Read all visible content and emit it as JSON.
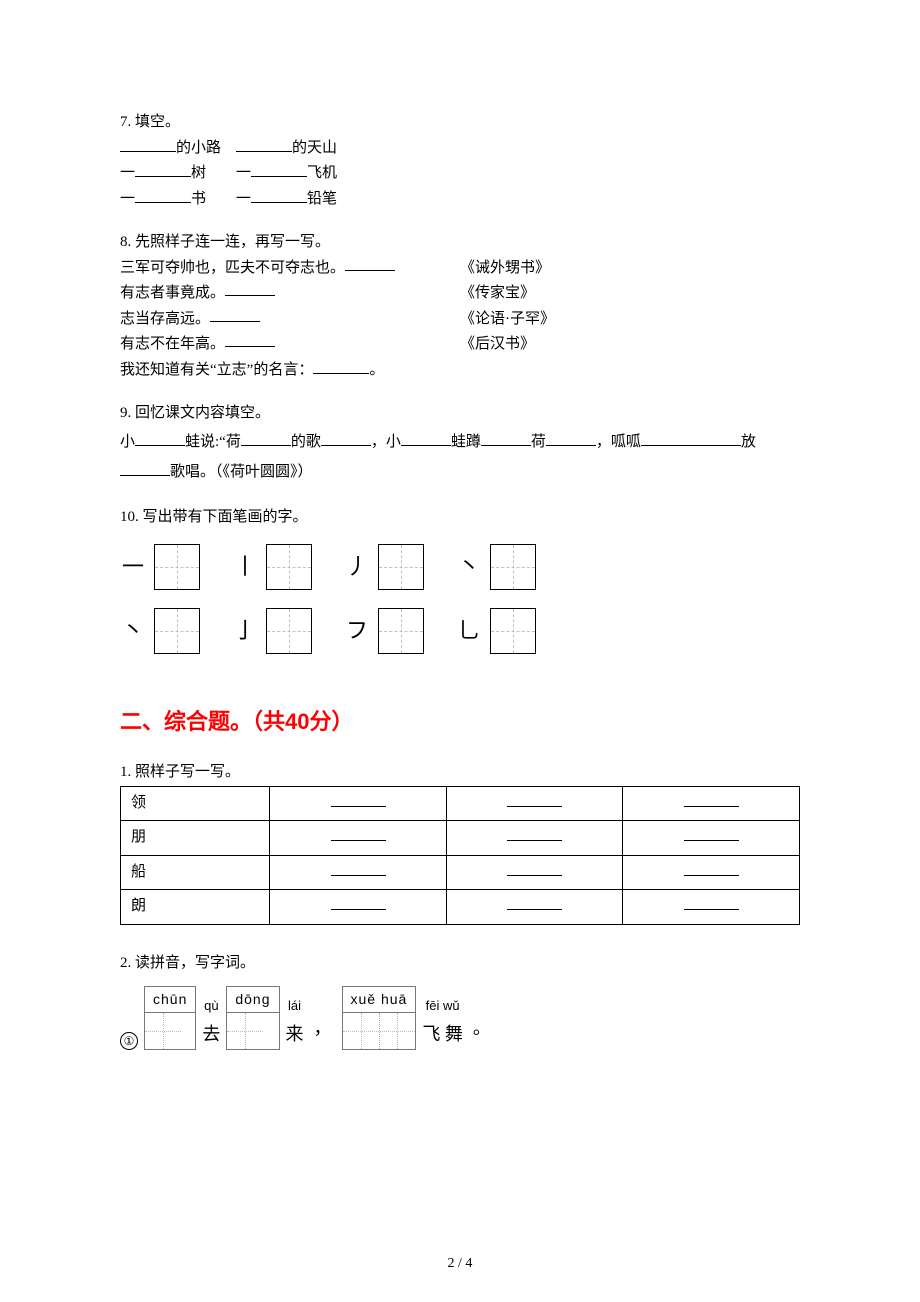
{
  "q7": {
    "title": "7. 填空。",
    "lines": [
      [
        {
          "t": "blank",
          "w": "lg"
        },
        {
          "t": "text",
          "v": "的小路　"
        },
        {
          "t": "blank",
          "w": "lg"
        },
        {
          "t": "text",
          "v": "的天山"
        }
      ],
      [
        {
          "t": "text",
          "v": "一"
        },
        {
          "t": "blank",
          "w": "lg"
        },
        {
          "t": "text",
          "v": "树　　一"
        },
        {
          "t": "blank",
          "w": "lg"
        },
        {
          "t": "text",
          "v": "飞机"
        }
      ],
      [
        {
          "t": "text",
          "v": "一"
        },
        {
          "t": "blank",
          "w": "lg"
        },
        {
          "t": "text",
          "v": "书　　一"
        },
        {
          "t": "blank",
          "w": "lg"
        },
        {
          "t": "text",
          "v": "铅笔"
        }
      ]
    ]
  },
  "q8": {
    "title": "8. 先照样子连一连，再写一写。",
    "rows": [
      {
        "left": "三军可夺帅也，匹夫不可夺志也。",
        "right": "《诫外甥书》"
      },
      {
        "left": "有志者事竟成。",
        "right": "《传家宝》"
      },
      {
        "left": "志当存高远。",
        "right": "《论语·子罕》"
      },
      {
        "left": "有志不在年高。",
        "right": "《后汉书》"
      }
    ],
    "tail_prefix": "我还知道有关“立志”的名言：",
    "tail_suffix": "。"
  },
  "q9": {
    "title": "9. 回忆课文内容填空。",
    "segments": [
      {
        "t": "text",
        "v": "小"
      },
      {
        "t": "blank"
      },
      {
        "t": "text",
        "v": "蛙说:“荷"
      },
      {
        "t": "blank"
      },
      {
        "t": "text",
        "v": "的歌"
      },
      {
        "t": "blank"
      },
      {
        "t": "text",
        "v": "，小"
      },
      {
        "t": "blank"
      },
      {
        "t": "text",
        "v": "蛙蹲"
      },
      {
        "t": "blank"
      },
      {
        "t": "text",
        "v": "荷"
      },
      {
        "t": "blank"
      },
      {
        "t": "text",
        "v": "，呱呱"
      },
      {
        "t": "blank"
      },
      {
        "t": "blank"
      },
      {
        "t": "text",
        "v": "放"
      },
      {
        "t": "blank"
      },
      {
        "t": "text",
        "v": "歌唱。（《荷叶圆圆》）"
      }
    ]
  },
  "q10": {
    "title": "10. 写出带有下面笔画的字。",
    "row1": [
      "一",
      "丨",
      "丿",
      "丶"
    ],
    "row2": [
      "丶",
      "亅",
      "フ",
      "乚"
    ]
  },
  "section2": {
    "title": "二、综合题。（共40分）"
  },
  "c1": {
    "title": "1. 照样子写一写。",
    "chars": [
      "领",
      "朋",
      "船",
      "朗"
    ]
  },
  "c2": {
    "title": "2. 读拼音，写字词。",
    "marker": "①",
    "items": [
      {
        "type": "box",
        "pinyin": "chūn",
        "cells": 1
      },
      {
        "type": "plain",
        "pinyin": "qù",
        "char": "去"
      },
      {
        "type": "box",
        "pinyin": "dōng",
        "cells": 1
      },
      {
        "type": "plain",
        "pinyin": "lái",
        "char": "来"
      },
      {
        "type": "comma",
        "v": "，"
      },
      {
        "type": "box",
        "pinyin": "xuě  huā",
        "cells": 2
      },
      {
        "type": "plain",
        "pinyin": "fēi wǔ",
        "char": "飞 舞"
      },
      {
        "type": "comma",
        "v": "。"
      }
    ]
  },
  "pageNumber": "2 / 4",
  "colors": {
    "section_title": "#ff0000",
    "text": "#000000",
    "grid_border": "#000000",
    "grid_dash": "#c0c0c0"
  }
}
